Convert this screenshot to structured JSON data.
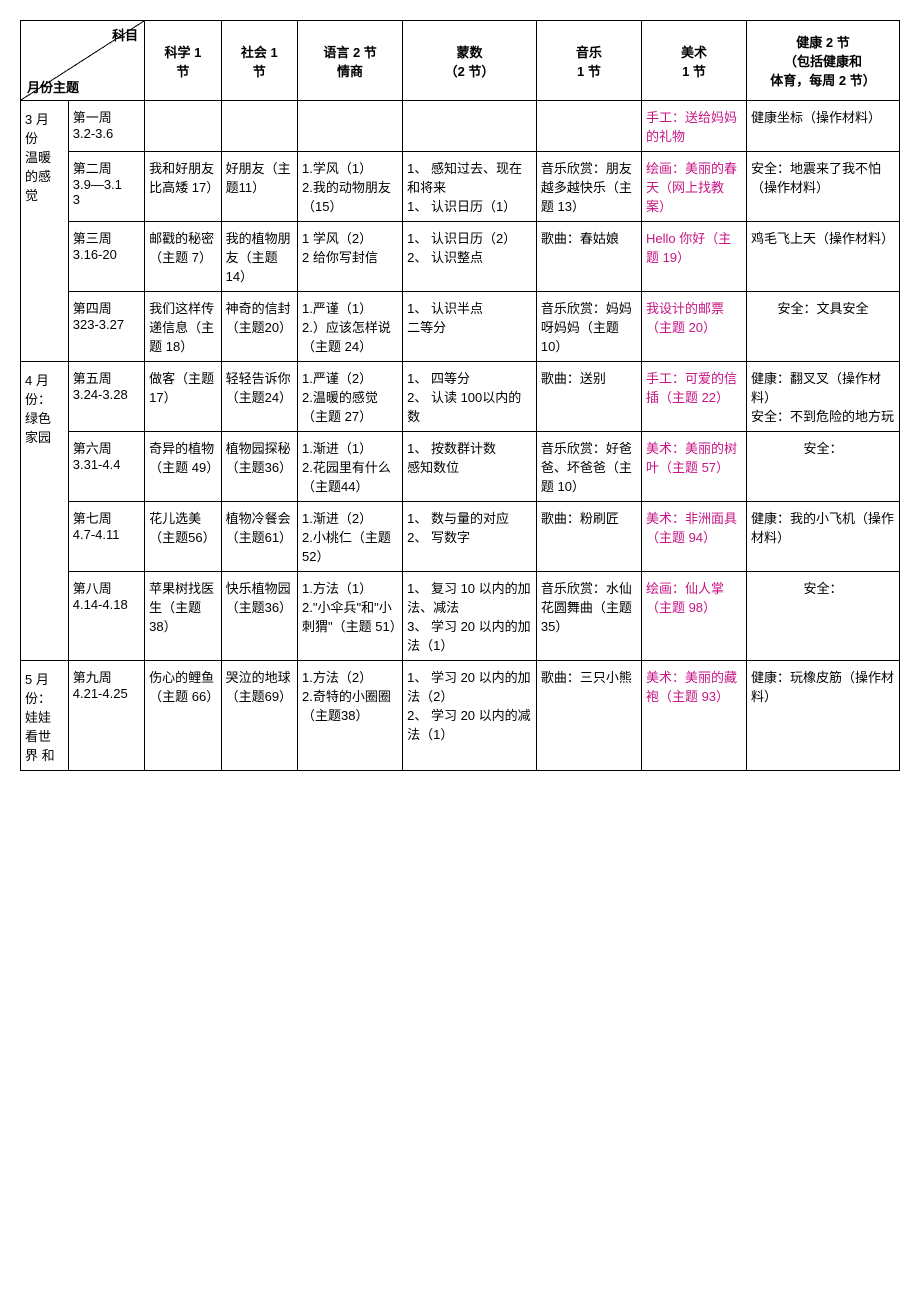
{
  "header": {
    "diag_top": "科目",
    "diag_bottom": "月份主题",
    "cols": {
      "science": "科学 1\n节",
      "society": "社会 1\n节",
      "language": "语言 2 节\n情商",
      "math": "蒙数\n（2 节）",
      "music": "音乐\n1 节",
      "art": "美术\n1 节",
      "health": "健康 2 节\n（包括健康和\n体育，每周 2 节）"
    }
  },
  "months": {
    "march": "3 月\n份\n温暖\n的感\n觉",
    "april": "4 月\n份：\n绿色\n家园",
    "may": "5 月\n份：\n娃娃\n看世\n界 和"
  },
  "rows": [
    {
      "week": "第一周\n3.2-3.6",
      "science": "",
      "society": "",
      "language": "",
      "math": "",
      "music": "",
      "art": "手工：送给妈妈的礼物",
      "art_accent": true,
      "health": "健康坐标（操作材料）"
    },
    {
      "week": "第二周\n3.9—3.1\n3",
      "science": "我和好朋友比高矮 17）",
      "society": "好朋友（主题11）",
      "language": "1.学风（1）\n2.我的动物朋友（15）",
      "math": "1、 感知过去、现在和将来\n1、 认识日历（1）",
      "music": "音乐欣赏：朋友越多越快乐（主题 13）",
      "art": "绘画：美丽的春天（网上找教案）",
      "art_accent": true,
      "health": "安全：地震来了我不怕（操作材料）"
    },
    {
      "week": "第三周\n3.16-20",
      "science": "邮戳的秘密（主题 7）",
      "society": "我的植物朋友（主题 14）",
      "language": "1 学风（2）\n2 给你写封信",
      "math": "1、 认识日历（2）\n2、 认识整点",
      "music": "歌曲：春姑娘",
      "art": "Hello 你好（主题 19）",
      "art_accent": true,
      "health": "鸡毛飞上天（操作材料）"
    },
    {
      "week": "第四周\n323-3.27",
      "science": "我们这样传递信息（主题 18）",
      "society": "神奇的信封（主题20）",
      "language": "1.严谨（1）\n2.）应该怎样说（主题 24）",
      "math": "1、 认识半点\n二等分",
      "music": "音乐欣赏：妈妈呀妈妈（主题 10）",
      "art": "我设计的邮票（主题 20）",
      "art_accent": true,
      "health": "安全：文具安全",
      "health_center": true
    },
    {
      "week": "第五周\n3.24-3.28",
      "science": "做客（主题 17）",
      "society": "轻轻告诉你（主题24）",
      "language": "1.严谨（2）\n2.温暖的感觉（主题 27）",
      "math": "1、 四等分\n2、 认读 100以内的数",
      "music": "歌曲：送别",
      "art": "手工：可爱的信插（主题 22）",
      "art_accent": true,
      "health": "健康：翻叉叉（操作材料）\n安全：不到危险的地方玩"
    },
    {
      "week": "第六周\n3.31-4.4",
      "science": "奇异的植物（主题 49）",
      "society": "植物园探秘（主题36）",
      "language": "1.渐进（1）\n2.花园里有什么（主题44）",
      "math": "1、 按数群计数\n感知数位",
      "music": "音乐欣赏：好爸爸、坏爸爸（主题 10）",
      "art": "美术：美丽的树叶（主题 57）",
      "art_accent": true,
      "health": "安全：",
      "health_center": true
    },
    {
      "week": "第七周\n4.7-4.11",
      "science": "花儿选美（主题56）",
      "society": "植物冷餐会（主题61）",
      "language": "1.渐进（2）\n2.小桃仁（主题 52）",
      "math": "1、 数与量的对应\n2、 写数字",
      "music": "歌曲：粉刷匠",
      "art": "美术：非洲面具（主题 94）",
      "art_accent": true,
      "health": "健康：我的小飞机（操作材料）"
    },
    {
      "week": "第八周\n4.14-4.18",
      "science": "苹果树找医生（主题38）",
      "society": "快乐植物园（主题36）",
      "language": "1.方法（1）\n2.\"小伞兵\"和\"小刺猬\"（主题 51）",
      "math": "1、 复习 10 以内的加法、减法\n3、 学习 20 以内的加法（1）",
      "music": "音乐欣赏：水仙花圆舞曲（主题 35）",
      "art": "绘画：仙人掌（主题 98）",
      "art_accent": true,
      "health": "安全：",
      "health_center": true
    },
    {
      "week": "第九周\n4.21-4.25",
      "science": "伤心的鲤鱼（主题 66）",
      "society": "哭泣的地球（主题69）",
      "language": "1.方法（2）\n2.奇特的小圈圈（主题38）",
      "math": "1、 学习 20 以内的加法（2）\n2、 学习 20 以内的减法（1）",
      "music": "歌曲：三只小熊",
      "art": "美术：美丽的藏袍（主题 93）",
      "art_accent": true,
      "health": "健康：玩橡皮筋（操作材料）"
    }
  ]
}
